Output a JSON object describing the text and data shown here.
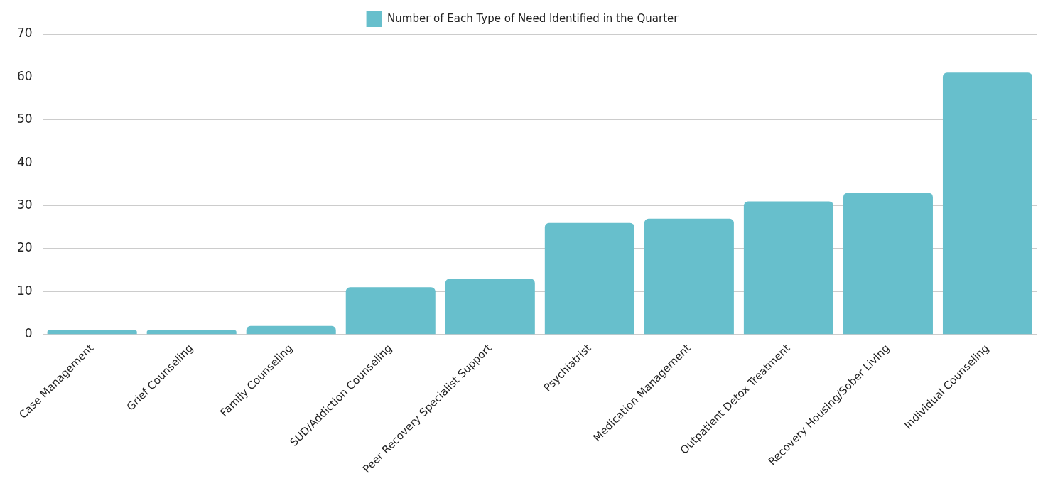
{
  "chart_data": {
    "type": "bar",
    "categories": [
      "Case Management",
      "Grief Counseling",
      "Family Counseling",
      "SUD/Addiction Counseling",
      "Peer Recovery Specialist Support",
      "Psychiatrist",
      "Medication Management",
      "Outpatient Detox Treatment",
      "Recovery Housing/Sober Living",
      "Individual Counseling"
    ],
    "series": [
      {
        "name": "Number of Each Type of Need Identified in the Quarter",
        "color": "#67bfcc",
        "values": [
          1,
          1,
          2,
          11,
          13,
          26,
          27,
          31,
          33,
          61
        ]
      }
    ],
    "ylim": [
      0,
      70
    ],
    "yticks": [
      0,
      10,
      20,
      30,
      40,
      50,
      60,
      70
    ],
    "grid": "y",
    "legend": "top"
  }
}
